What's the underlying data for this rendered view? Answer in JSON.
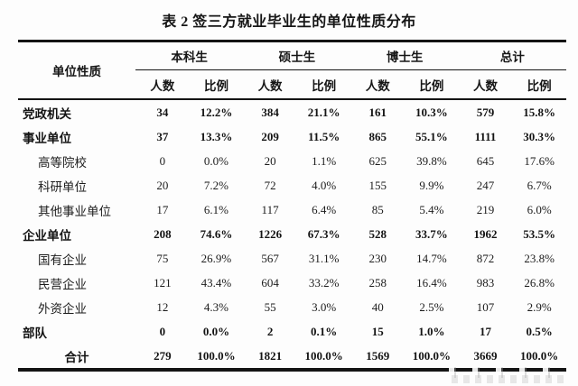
{
  "title": "表 2 签三方就业毕业生的单位性质分布",
  "table": {
    "corner_header": "单位性质",
    "group_headers": [
      "本科生",
      "硕士生",
      "博士生",
      "总计"
    ],
    "sub_headers": [
      "人数",
      "比例"
    ],
    "rows": [
      {
        "label": "党政机关",
        "style": "parent",
        "values": [
          "34",
          "12.2%",
          "384",
          "21.1%",
          "161",
          "10.3%",
          "579",
          "15.8%"
        ]
      },
      {
        "label": "事业单位",
        "style": "parent",
        "values": [
          "37",
          "13.3%",
          "209",
          "11.5%",
          "865",
          "55.1%",
          "1111",
          "30.3%"
        ]
      },
      {
        "label": "高等院校",
        "style": "sub",
        "values": [
          "0",
          "0.0%",
          "20",
          "1.1%",
          "625",
          "39.8%",
          "645",
          "17.6%"
        ]
      },
      {
        "label": "科研单位",
        "style": "sub",
        "values": [
          "20",
          "7.2%",
          "72",
          "4.0%",
          "155",
          "9.9%",
          "247",
          "6.7%"
        ]
      },
      {
        "label": "其他事业单位",
        "style": "sub",
        "values": [
          "17",
          "6.1%",
          "117",
          "6.4%",
          "85",
          "5.4%",
          "219",
          "6.0%"
        ]
      },
      {
        "label": "企业单位",
        "style": "parent",
        "values": [
          "208",
          "74.6%",
          "1226",
          "67.3%",
          "528",
          "33.7%",
          "1962",
          "53.5%"
        ]
      },
      {
        "label": "国有企业",
        "style": "sub",
        "values": [
          "75",
          "26.9%",
          "567",
          "31.1%",
          "230",
          "14.7%",
          "872",
          "23.8%"
        ]
      },
      {
        "label": "民营企业",
        "style": "sub",
        "values": [
          "121",
          "43.4%",
          "604",
          "33.2%",
          "258",
          "16.4%",
          "983",
          "26.8%"
        ]
      },
      {
        "label": "外资企业",
        "style": "sub",
        "values": [
          "12",
          "4.3%",
          "55",
          "3.0%",
          "40",
          "2.5%",
          "107",
          "2.9%"
        ]
      },
      {
        "label": "部队",
        "style": "parent",
        "values": [
          "0",
          "0.0%",
          "2",
          "0.1%",
          "15",
          "1.0%",
          "17",
          "0.5%"
        ]
      },
      {
        "label": "合计",
        "style": "total",
        "values": [
          "279",
          "100.0%",
          "1821",
          "100.0%",
          "1569",
          "100.0%",
          "3669",
          "100.0%"
        ]
      }
    ],
    "colors": {
      "text": "#1a1a1a",
      "border": "#141414",
      "background": "#fdfdfd"
    }
  }
}
